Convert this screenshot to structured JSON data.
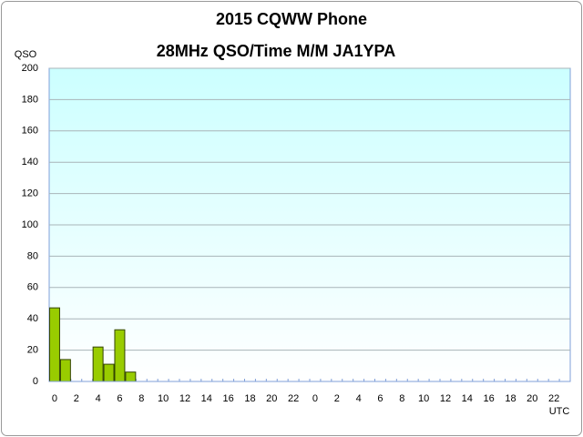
{
  "chart_data": {
    "type": "bar",
    "title": "2015  CQWW Phone",
    "subtitle": "28MHz QSO/Time  M/M JA1YPA",
    "y_label": "QSO",
    "x_label": "UTC",
    "categories": [
      "0",
      null,
      "2",
      null,
      "4",
      null,
      "6",
      null,
      "8",
      null,
      "10",
      null,
      "12",
      null,
      "14",
      null,
      "16",
      null,
      "18",
      null,
      "20",
      null,
      "22",
      null,
      "0",
      null,
      "2",
      null,
      "4",
      null,
      "6",
      null,
      "8",
      null,
      "10",
      null,
      "12",
      null,
      "14",
      null,
      "16",
      null,
      "18",
      null,
      "20",
      null,
      "22",
      null
    ],
    "values": [
      47,
      14,
      0,
      0,
      22,
      11,
      33,
      6,
      0,
      0,
      0,
      0,
      0,
      0,
      0,
      0,
      0,
      0,
      0,
      0,
      0,
      0,
      0,
      0,
      0,
      0,
      0,
      0,
      0,
      0,
      0,
      0,
      0,
      0,
      0,
      0,
      0,
      0,
      0,
      0,
      0,
      0,
      0,
      0,
      0,
      0,
      0,
      0
    ],
    "color": "#99cc00",
    "ylim": [
      0,
      200
    ],
    "yticks": [
      0,
      20,
      40,
      60,
      80,
      100,
      120,
      140,
      160,
      180,
      200
    ],
    "grid": true
  }
}
